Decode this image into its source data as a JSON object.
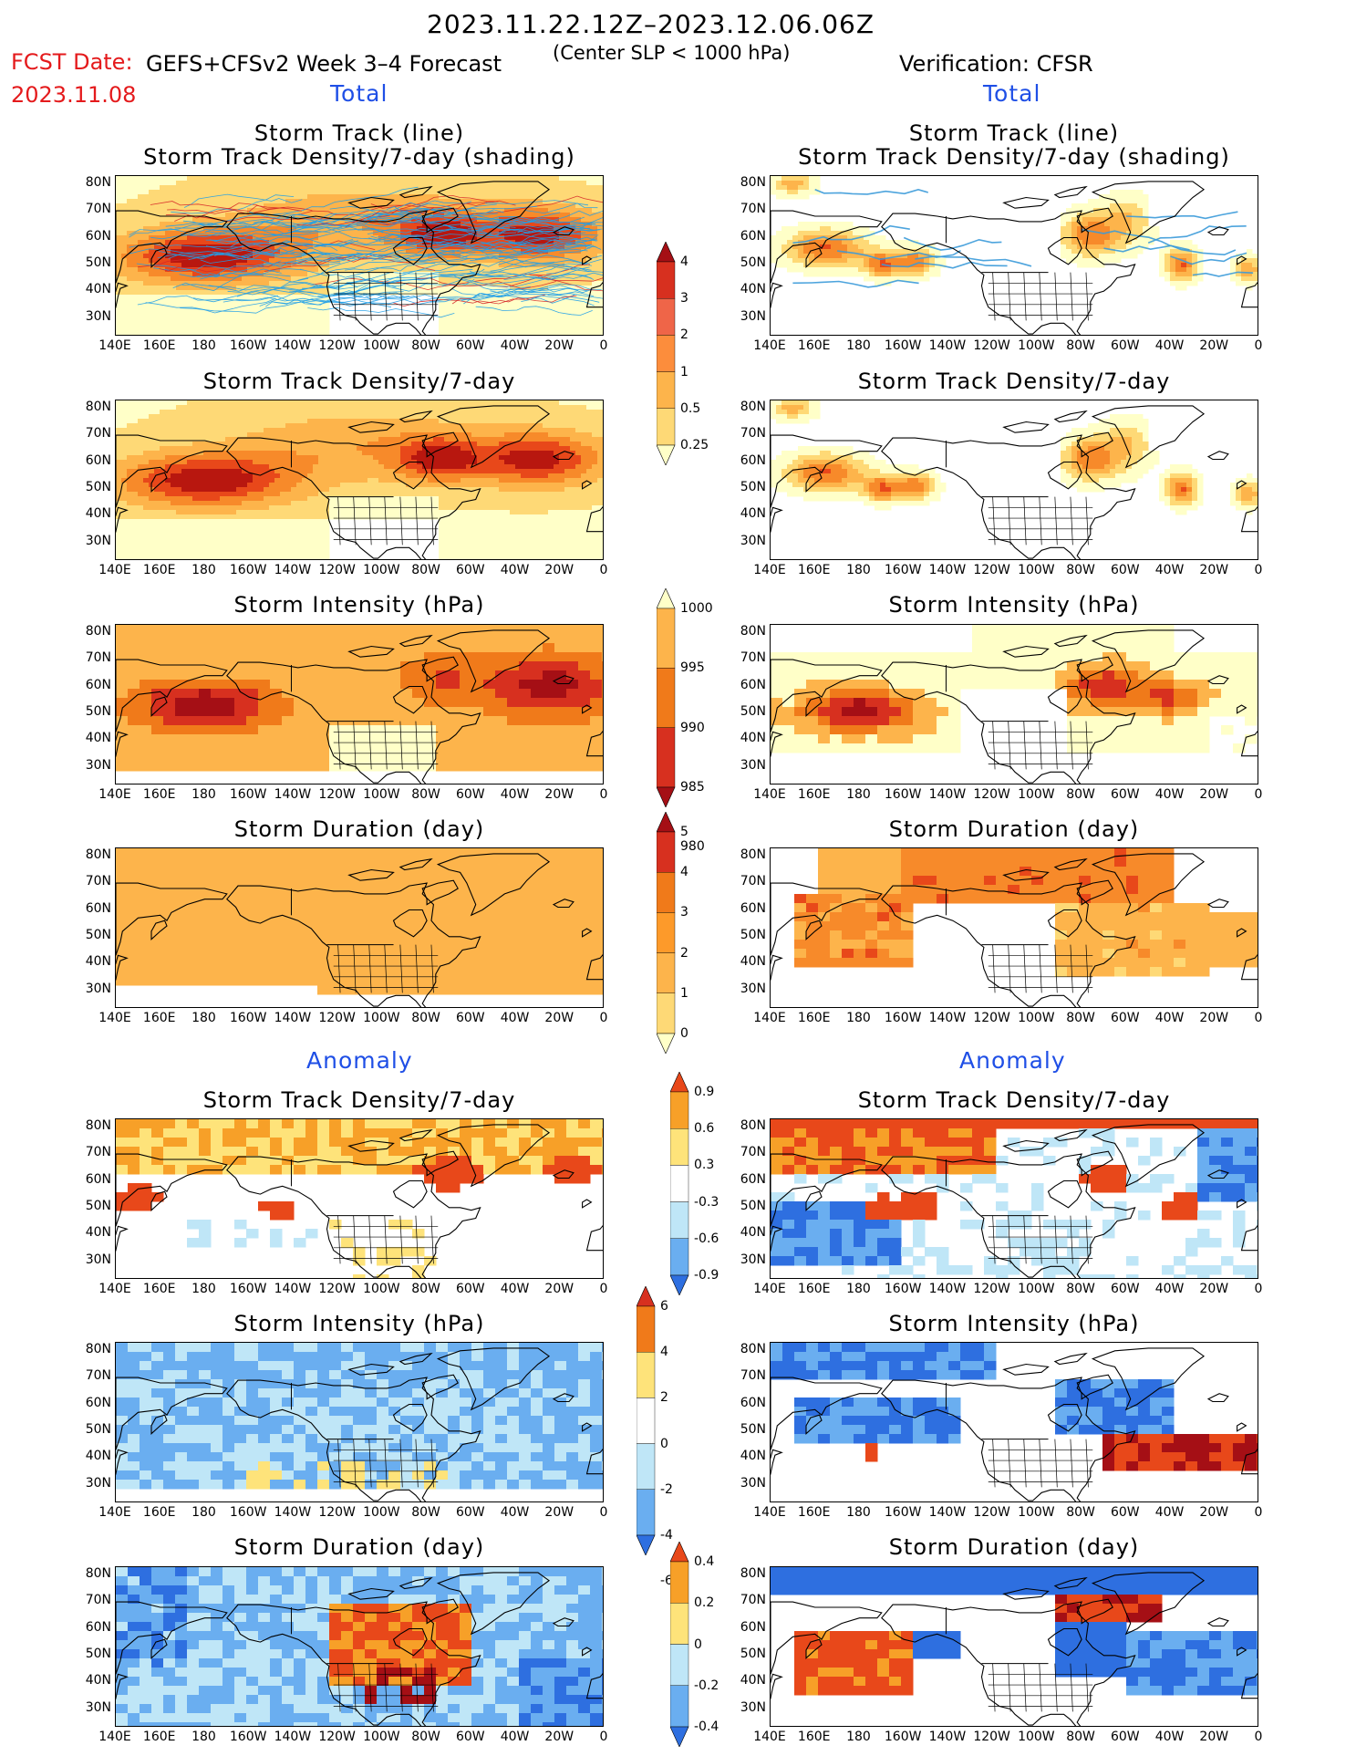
{
  "header": {
    "period": "2023.11.22.12Z–2023.12.06.06Z",
    "criterion": "(Center SLP < 1000 hPa)",
    "fcst_date_label": "FCST Date:",
    "fcst_date": "2023.11.08",
    "model": "GEFS+CFSv2 Week 3–4 Forecast",
    "verification": "Verification: CFSR"
  },
  "sections": {
    "total": "Total",
    "anomaly": "Anomaly"
  },
  "panel_titles": {
    "track_line": "Storm Track (line)",
    "track_density_shading": "Storm Track Density/7-day (shading)",
    "track_density": "Storm Track Density/7-day",
    "intensity": "Storm Intensity (hPa)",
    "duration": "Storm Duration (day)"
  },
  "axes": {
    "lat": [
      "80N",
      "70N",
      "60N",
      "50N",
      "40N",
      "30N"
    ],
    "lon": [
      "140E",
      "160E",
      "180",
      "160W",
      "140W",
      "120W",
      "100W",
      "80W",
      "60W",
      "40W",
      "20W",
      "0"
    ]
  },
  "colorbars": {
    "density_total": {
      "labels": [
        "4",
        "3",
        "2",
        "1",
        "0.5",
        "0.25"
      ],
      "colors": [
        "#a50f15",
        "#d7301f",
        "#ef6548",
        "#fc8d3c",
        "#fdb44b",
        "#fed976",
        "#ffffc8"
      ]
    },
    "intensity_total": {
      "labels": [
        "1000",
        "995",
        "990",
        "985",
        "980"
      ],
      "colors": [
        "#ffffc8",
        "#fdb44b",
        "#f07a1a",
        "#d7301f",
        "#a50f15"
      ]
    },
    "duration_total": {
      "labels": [
        "5",
        "4",
        "3",
        "2",
        "1",
        "0"
      ],
      "colors": [
        "#a50f15",
        "#d7301f",
        "#f07a1a",
        "#fd9a2a",
        "#fdb44b",
        "#fed976",
        "#ffffc8"
      ]
    },
    "density_anom": {
      "labels": [
        "0.9",
        "0.6",
        "0.3",
        "-0.3",
        "-0.6",
        "-0.9"
      ],
      "colors": [
        "#e8481a",
        "#f7a028",
        "#fee37a",
        "#ffffff",
        "#bfe6f7",
        "#6aaef0",
        "#2e6fe0"
      ]
    },
    "intensity_anom": {
      "labels": [
        "6",
        "4",
        "2",
        "0",
        "-2",
        "-4",
        "-6"
      ],
      "colors": [
        "#d7301f",
        "#f07a1a",
        "#fee37a",
        "#ffffff",
        "#bfe6f7",
        "#6aaef0",
        "#2e6fe0"
      ]
    },
    "duration_anom": {
      "labels": [
        "0.4",
        "0.2",
        "0",
        "-0.2",
        "-0.4"
      ],
      "colors": [
        "#e8481a",
        "#f7a028",
        "#fee37a",
        "#bfe6f7",
        "#6aaef0",
        "#2e6fe0"
      ]
    }
  }
}
